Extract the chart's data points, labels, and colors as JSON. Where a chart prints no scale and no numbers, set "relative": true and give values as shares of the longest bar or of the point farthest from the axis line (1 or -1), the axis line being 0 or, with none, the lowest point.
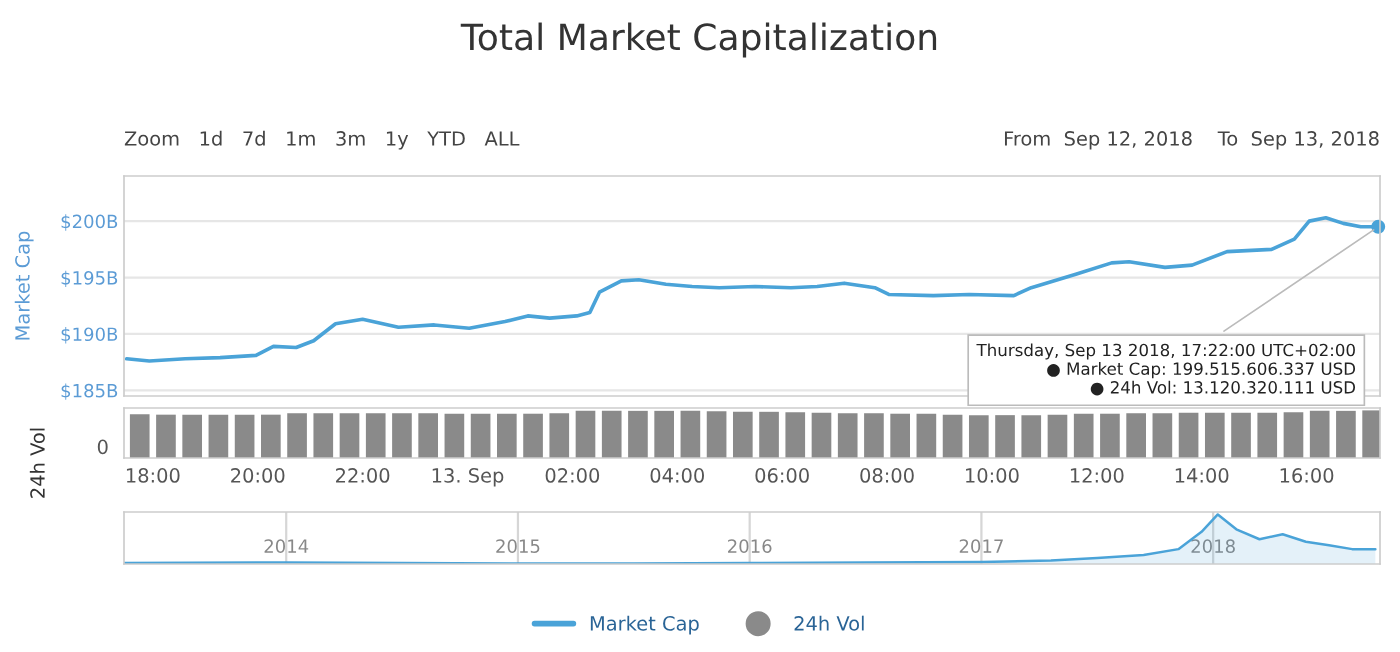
{
  "chart_data": [
    {
      "type": "line",
      "title": "Total Market Capitalization",
      "ylabel": "Market Cap",
      "x": [
        "2018-09-12T17:30",
        "2018-09-12T17:56",
        "2018-09-12T18:37",
        "2018-09-12T19:17",
        "2018-09-12T19:58",
        "2018-09-12T20:18",
        "2018-09-12T20:44",
        "2018-09-12T21:04",
        "2018-09-12T21:29",
        "2018-09-12T22:00",
        "2018-09-12T22:41",
        "2018-09-12T23:22",
        "2018-09-13T00:02",
        "2018-09-13T00:43",
        "2018-09-13T01:09",
        "2018-09-13T01:34",
        "2018-09-13T02:05",
        "2018-09-13T02:20",
        "2018-09-13T02:31",
        "2018-09-13T02:56",
        "2018-09-13T03:16",
        "2018-09-13T03:47",
        "2018-09-13T04:17",
        "2018-09-13T04:48",
        "2018-09-13T05:29",
        "2018-09-13T06:10",
        "2018-09-13T06:40",
        "2018-09-13T07:11",
        "2018-09-13T07:46",
        "2018-09-13T08:02",
        "2018-09-13T08:53",
        "2018-09-13T09:34",
        "2018-09-13T10:25",
        "2018-09-13T10:45",
        "2018-09-13T11:36",
        "2018-09-13T12:17",
        "2018-09-13T12:37",
        "2018-09-13T13:18",
        "2018-09-13T13:49",
        "2018-09-13T14:29",
        "2018-09-13T15:20",
        "2018-09-13T15:46",
        "2018-09-13T16:03",
        "2018-09-13T16:22",
        "2018-09-13T16:42",
        "2018-09-13T17:02",
        "2018-09-13T17:22"
      ],
      "series": [
        {
          "name": "Market Cap",
          "color": "#4aa3d8",
          "values": [
            187.8,
            187.6,
            187.8,
            187.9,
            188.1,
            188.9,
            188.8,
            189.4,
            190.9,
            191.3,
            190.6,
            190.8,
            190.5,
            191.1,
            191.6,
            191.4,
            191.6,
            191.9,
            193.7,
            194.7,
            194.8,
            194.4,
            194.2,
            194.1,
            194.2,
            194.1,
            194.2,
            194.5,
            194.1,
            193.5,
            193.4,
            193.5,
            193.4,
            194.1,
            195.3,
            196.3,
            196.4,
            195.9,
            196.1,
            197.3,
            197.5,
            198.4,
            200.0,
            200.3,
            199.8,
            199.5,
            199.5
          ]
        }
      ],
      "xlim": [
        "2018-09-12T17:27",
        "2018-09-13T17:24"
      ],
      "ylim": [
        184.5,
        204
      ],
      "yticks": [
        {
          "value": 185,
          "label": "$185B"
        },
        {
          "value": 190,
          "label": "$190B"
        },
        {
          "value": 195,
          "label": "$195B"
        },
        {
          "value": 200,
          "label": "$200B"
        }
      ],
      "tick_labels": "y",
      "grid": "y",
      "legend": "bottom",
      "marker": "none",
      "line_style": "solid",
      "annotations": [
        {
          "text": "Thursday, Sep 13 2018, 17:22:00 UTC+02:00\n● Market Cap: 199.515.606.337 USD\n● 24h Vol: 13.120.320.111 USD",
          "x": "2018-09-13T17:22",
          "y": 199.5
        },
        "Zoom   1d   7d   1m   3m   1y   YTD   ALL",
        "From  Sep 12, 2018    To  Sep 13, 2018"
      ]
    },
    {
      "type": "bar",
      "ylabel": "24h Vol",
      "relative": true,
      "x": [
        "2018-09-12T17:45",
        "2018-09-12T18:15",
        "2018-09-12T18:45",
        "2018-09-12T19:15",
        "2018-09-12T19:45",
        "2018-09-12T20:15",
        "2018-09-12T20:45",
        "2018-09-12T21:15",
        "2018-09-12T21:45",
        "2018-09-12T22:15",
        "2018-09-12T22:45",
        "2018-09-12T23:15",
        "2018-09-12T23:45",
        "2018-09-13T00:15",
        "2018-09-13T00:45",
        "2018-09-13T01:15",
        "2018-09-13T01:45",
        "2018-09-13T02:15",
        "2018-09-13T02:45",
        "2018-09-13T03:15",
        "2018-09-13T03:45",
        "2018-09-13T04:15",
        "2018-09-13T04:45",
        "2018-09-13T05:15",
        "2018-09-13T05:45",
        "2018-09-13T06:15",
        "2018-09-13T06:45",
        "2018-09-13T07:15",
        "2018-09-13T07:45",
        "2018-09-13T08:15",
        "2018-09-13T08:45",
        "2018-09-13T09:15",
        "2018-09-13T09:45",
        "2018-09-13T10:15",
        "2018-09-13T10:45",
        "2018-09-13T11:15",
        "2018-09-13T11:45",
        "2018-09-13T12:15",
        "2018-09-13T12:45",
        "2018-09-13T13:15",
        "2018-09-13T13:45",
        "2018-09-13T14:15",
        "2018-09-13T14:45",
        "2018-09-13T15:15",
        "2018-09-13T15:45",
        "2018-09-13T16:15",
        "2018-09-13T16:45",
        "2018-09-13T17:15"
      ],
      "series": [
        {
          "name": "24h Vol",
          "color": "#8a8a8a",
          "values": [
            0.92,
            0.91,
            0.91,
            0.91,
            0.91,
            0.91,
            0.94,
            0.94,
            0.94,
            0.94,
            0.94,
            0.94,
            0.93,
            0.93,
            0.93,
            0.93,
            0.94,
            0.99,
            0.99,
            0.99,
            0.99,
            0.99,
            0.98,
            0.97,
            0.97,
            0.96,
            0.95,
            0.94,
            0.94,
            0.93,
            0.93,
            0.91,
            0.9,
            0.9,
            0.9,
            0.91,
            0.93,
            0.93,
            0.94,
            0.94,
            0.95,
            0.95,
            0.95,
            0.95,
            0.96,
            0.99,
            0.99,
            1.0
          ]
        }
      ],
      "xlim": [
        "2018-09-12T17:27",
        "2018-09-13T17:24"
      ],
      "xticks": [
        {
          "value": "2018-09-12T18:00",
          "label": "18:00"
        },
        {
          "value": "2018-09-12T20:00",
          "label": "20:00"
        },
        {
          "value": "2018-09-12T22:00",
          "label": "22:00"
        },
        {
          "value": "2018-09-13T00:00",
          "label": "13. Sep"
        },
        {
          "value": "2018-09-13T02:00",
          "label": "02:00"
        },
        {
          "value": "2018-09-13T04:00",
          "label": "04:00"
        },
        {
          "value": "2018-09-13T06:00",
          "label": "06:00"
        },
        {
          "value": "2018-09-13T08:00",
          "label": "08:00"
        },
        {
          "value": "2018-09-13T10:00",
          "label": "10:00"
        },
        {
          "value": "2018-09-13T12:00",
          "label": "12:00"
        },
        {
          "value": "2018-09-13T14:00",
          "label": "14:00"
        },
        {
          "value": "2018-09-13T16:00",
          "label": "16:00"
        }
      ],
      "tick_labels": "x",
      "annotations": [
        "0"
      ]
    },
    {
      "type": "area",
      "relative": true,
      "x": [
        2013.3,
        2014.0,
        2014.5,
        2015.0,
        2015.5,
        2016.0,
        2016.5,
        2017.0,
        2017.3,
        2017.5,
        2017.7,
        2017.85,
        2017.95,
        2018.02,
        2018.1,
        2018.2,
        2018.3,
        2018.4,
        2018.5,
        2018.6,
        2018.7
      ],
      "series": [
        {
          "color": "#4aa3d8",
          "values": [
            0.02,
            0.03,
            0.02,
            0.01,
            0.01,
            0.02,
            0.03,
            0.04,
            0.07,
            0.12,
            0.18,
            0.3,
            0.65,
            1.0,
            0.7,
            0.5,
            0.6,
            0.45,
            0.38,
            0.3,
            0.3
          ]
        }
      ],
      "xlim": [
        2013.3,
        2018.72
      ],
      "xticks": [
        2014,
        2015,
        2016,
        2017,
        2018
      ],
      "grid": "x"
    }
  ]
}
